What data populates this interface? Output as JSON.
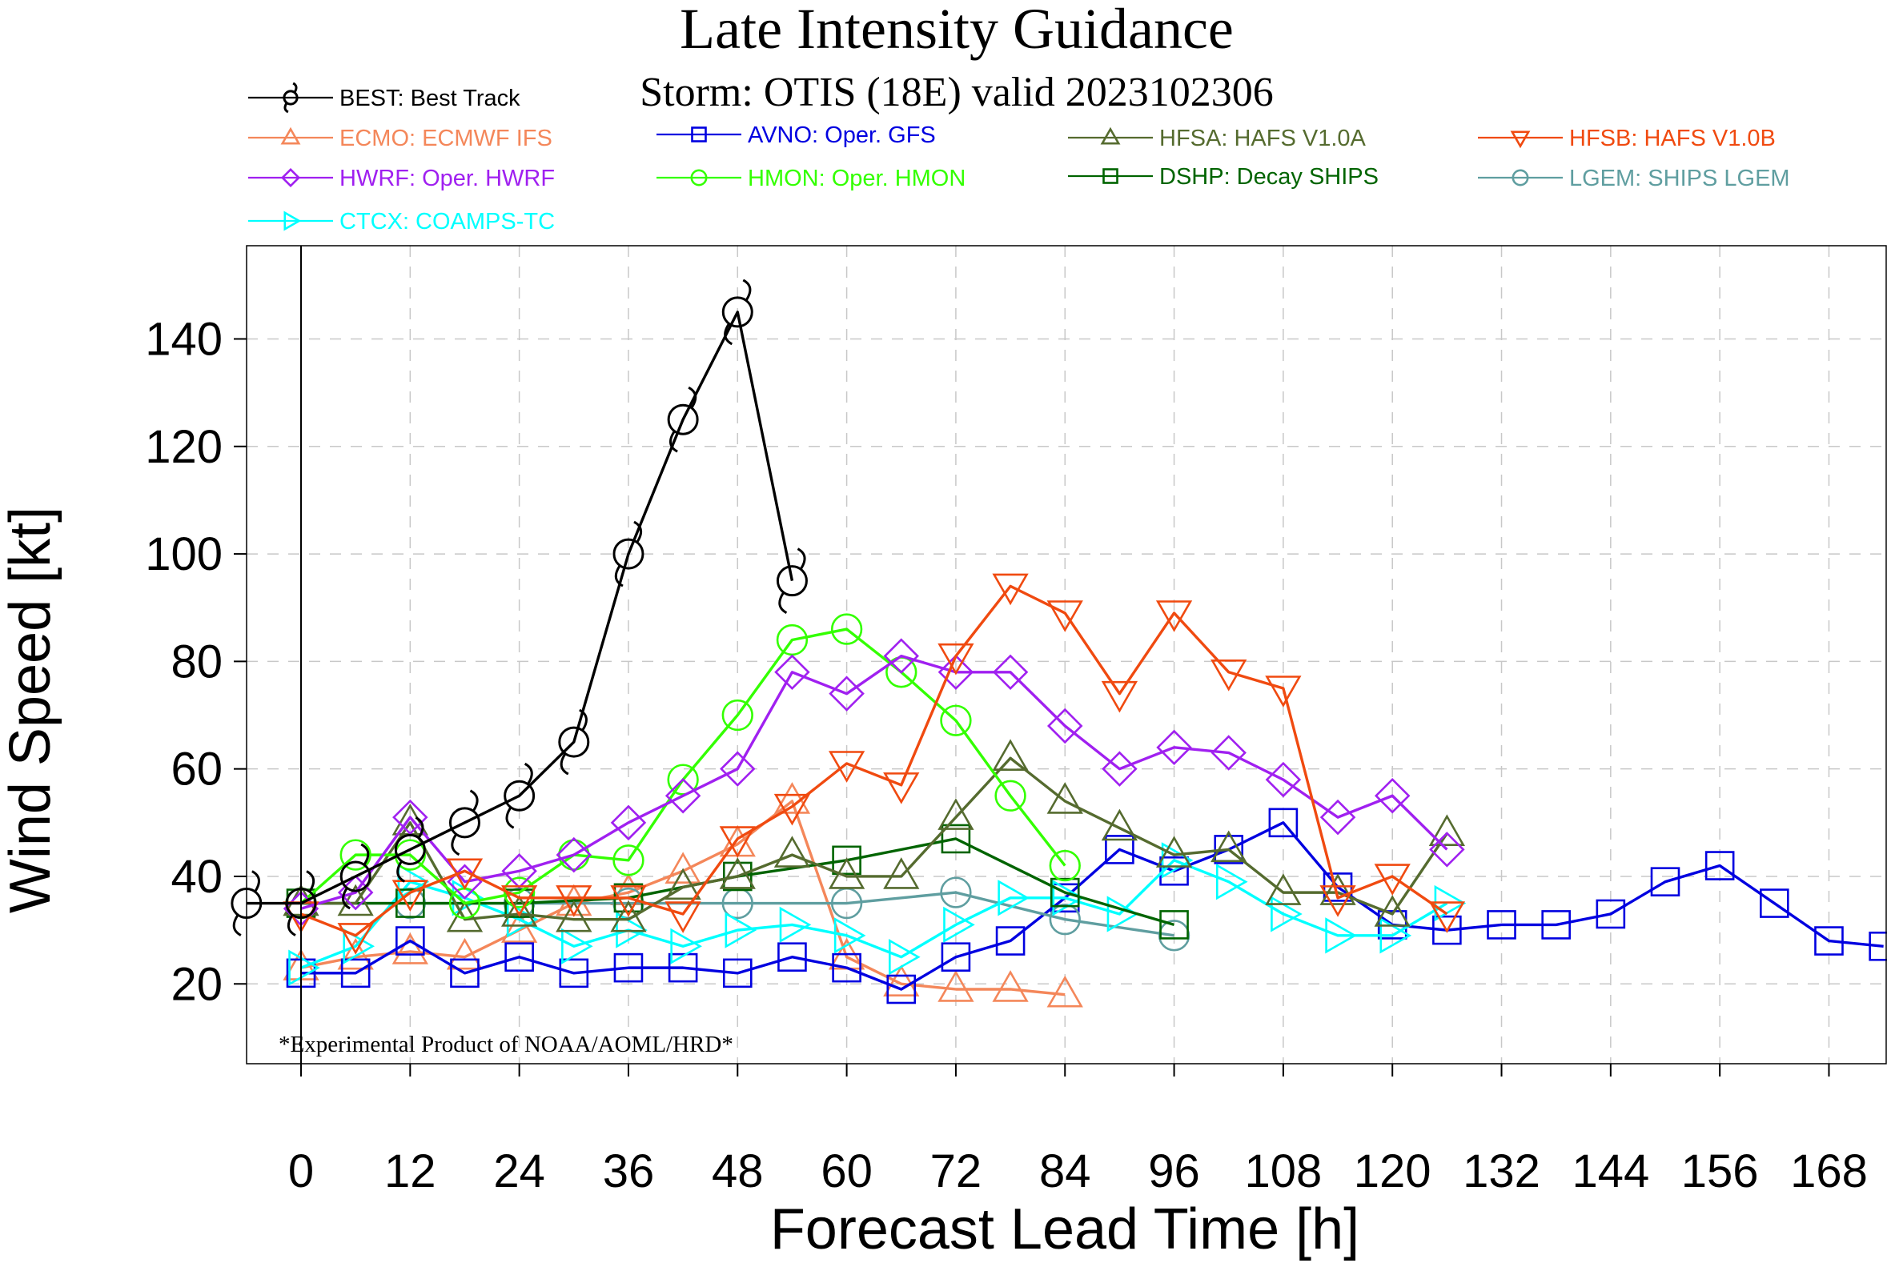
{
  "chart_data": {
    "type": "line",
    "title": "Late Intensity Guidance",
    "subtitle": "Storm: OTIS (18E) valid 2023102306",
    "xlabel": "Forecast Lead Time [h]",
    "ylabel": "Wind Speed [kt]",
    "xlim": [
      -12,
      174
    ],
    "ylim": [
      5,
      152
    ],
    "xticks": [
      0,
      12,
      24,
      36,
      48,
      60,
      72,
      84,
      96,
      108,
      120,
      132,
      144,
      156,
      168
    ],
    "yticks": [
      20,
      40,
      60,
      80,
      100,
      120,
      140
    ],
    "grid": true,
    "footnote": "*Experimental Product of NOAA/AOML/HRD*",
    "series": [
      {
        "id": "BEST",
        "name": "BEST: Best Track",
        "color": "#000000",
        "marker": "hurricane",
        "x": [
          -6,
          0,
          6,
          12,
          18,
          24,
          30,
          36,
          42,
          48,
          54
        ],
        "y": [
          35,
          35,
          40,
          45,
          50,
          55,
          65,
          100,
          125,
          145,
          95
        ]
      },
      {
        "id": "ECMO",
        "name": "ECMO: ECMWF IFS",
        "color": "#f4875a",
        "marker": "triangle-up",
        "x": [
          0,
          6,
          12,
          18,
          24,
          30,
          36,
          42,
          48,
          54,
          60,
          66,
          72,
          78,
          84
        ],
        "y": [
          23,
          25,
          26,
          25,
          30,
          35,
          37,
          41,
          46,
          54,
          25,
          20,
          19,
          19,
          18
        ]
      },
      {
        "id": "AVNO",
        "name": "AVNO: Oper. GFS",
        "color": "#0000e0",
        "marker": "square",
        "x": [
          0,
          6,
          12,
          18,
          24,
          30,
          36,
          42,
          48,
          54,
          60,
          66,
          72,
          78,
          84,
          90,
          96,
          102,
          108,
          114,
          120,
          126,
          132,
          138,
          144,
          150,
          156,
          162,
          168,
          174
        ],
        "y": [
          22,
          22,
          28,
          22,
          25,
          22,
          23,
          23,
          22,
          25,
          23,
          19,
          25,
          28,
          36,
          45,
          41,
          45,
          50,
          38,
          31,
          30,
          31,
          31,
          33,
          39,
          42,
          35,
          28,
          27
        ]
      },
      {
        "id": "HFSA",
        "name": "HFSA: HAFS V1.0A",
        "color": "#556b2f",
        "marker": "triangle-up",
        "x": [
          0,
          6,
          12,
          18,
          24,
          30,
          36,
          42,
          48,
          54,
          60,
          66,
          72,
          78,
          84,
          90,
          96,
          102,
          108,
          114,
          120,
          126
        ],
        "y": [
          35,
          35,
          50,
          32,
          33,
          32,
          32,
          38,
          40,
          44,
          40,
          40,
          51,
          62,
          54,
          49,
          44,
          45,
          37,
          37,
          33,
          48
        ]
      },
      {
        "id": "HFSB",
        "name": "HFSB: HAFS V1.0B",
        "color": "#f04a10",
        "marker": "triangle-down",
        "x": [
          0,
          6,
          12,
          18,
          24,
          30,
          36,
          42,
          48,
          54,
          60,
          66,
          72,
          78,
          84,
          90,
          96,
          102,
          108,
          114,
          120,
          126
        ],
        "y": [
          33,
          29,
          37,
          41,
          36,
          36,
          36,
          33,
          47,
          53,
          61,
          57,
          81,
          94,
          89,
          74,
          89,
          78,
          75,
          36,
          40,
          33
        ]
      },
      {
        "id": "HWRF",
        "name": "HWRF: Oper. HWRF",
        "color": "#a020f0",
        "marker": "diamond",
        "x": [
          0,
          6,
          12,
          18,
          24,
          30,
          36,
          42,
          48,
          54,
          60,
          66,
          72,
          78,
          84,
          90,
          96,
          102,
          108,
          114,
          120,
          126
        ],
        "y": [
          34,
          37,
          51,
          39,
          41,
          44,
          50,
          55,
          60,
          78,
          74,
          81,
          78,
          78,
          68,
          60,
          64,
          63,
          58,
          51,
          55,
          45
        ]
      },
      {
        "id": "HMON",
        "name": "HMON: Oper. HMON",
        "color": "#33ff00",
        "marker": "circle",
        "x": [
          0,
          6,
          12,
          18,
          24,
          30,
          36,
          42,
          48,
          54,
          60,
          66,
          72,
          78,
          84
        ],
        "y": [
          35,
          44,
          44,
          35,
          37,
          44,
          43,
          58,
          70,
          84,
          86,
          78,
          69,
          55,
          42
        ]
      },
      {
        "id": "DSHP",
        "name": "DSHP: Decay SHIPS",
        "color": "#006400",
        "marker": "square",
        "x": [
          0,
          12,
          24,
          36,
          48,
          60,
          72,
          84,
          96
        ],
        "y": [
          35,
          35,
          35,
          36,
          40,
          43,
          47,
          37,
          31
        ]
      },
      {
        "id": "LGEM",
        "name": "LGEM: SHIPS LGEM",
        "color": "#5f9ea0",
        "marker": "circle",
        "x": [
          0,
          12,
          24,
          36,
          48,
          60,
          72,
          84,
          96
        ],
        "y": [
          35,
          35,
          35,
          35,
          35,
          35,
          37,
          32,
          29
        ]
      },
      {
        "id": "CTCX",
        "name": "CTCX: COAMPS-TC",
        "color": "#00ffff",
        "marker": "triangle-right",
        "x": [
          0,
          6,
          12,
          18,
          24,
          30,
          36,
          42,
          48,
          54,
          60,
          66,
          72,
          78,
          84,
          90,
          96,
          102,
          108,
          114,
          120,
          126
        ],
        "y": [
          23,
          27,
          39,
          36,
          32,
          27,
          30,
          27,
          30,
          31,
          29,
          25,
          31,
          36,
          36,
          33,
          43,
          39,
          33,
          29,
          29,
          35
        ]
      }
    ]
  }
}
